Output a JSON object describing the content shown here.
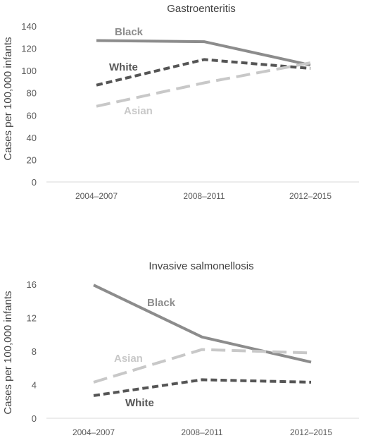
{
  "chart_data": [
    {
      "type": "line",
      "title": "Gastroenteritis",
      "xlabel": "",
      "ylabel": "Cases per 100,000 infants",
      "categories": [
        "2004–2007",
        "2008–2011",
        "2012–2015"
      ],
      "ylim": [
        0,
        140
      ],
      "yticks": [
        0,
        20,
        40,
        60,
        80,
        100,
        120,
        140
      ],
      "grid": false,
      "legend": "labels beside lines",
      "series": [
        {
          "name": "Black",
          "values": [
            127,
            126,
            105
          ],
          "color": "#8c8c8c",
          "style": "solid"
        },
        {
          "name": "White",
          "values": [
            87,
            110,
            102
          ],
          "color": "#555555",
          "style": "short-dash"
        },
        {
          "name": "Asian",
          "values": [
            68,
            89,
            107
          ],
          "color": "#c8c8c8",
          "style": "long-dash"
        }
      ]
    },
    {
      "type": "line",
      "title": "Invasive salmonellosis",
      "xlabel": "",
      "ylabel": "Cases per 100,000 infants",
      "categories": [
        "2004–2007",
        "2008–2011",
        "2012–2015"
      ],
      "ylim": [
        0,
        16
      ],
      "yticks": [
        0,
        4,
        8,
        12,
        16
      ],
      "grid": false,
      "legend": "labels beside lines",
      "series": [
        {
          "name": "Black",
          "values": [
            15.9,
            9.7,
            6.7
          ],
          "color": "#8c8c8c",
          "style": "solid"
        },
        {
          "name": "Asian",
          "values": [
            4.3,
            8.2,
            7.8
          ],
          "color": "#c8c8c8",
          "style": "long-dash"
        },
        {
          "name": "White",
          "values": [
            2.7,
            4.6,
            4.3
          ],
          "color": "#555555",
          "style": "short-dash"
        }
      ]
    }
  ]
}
